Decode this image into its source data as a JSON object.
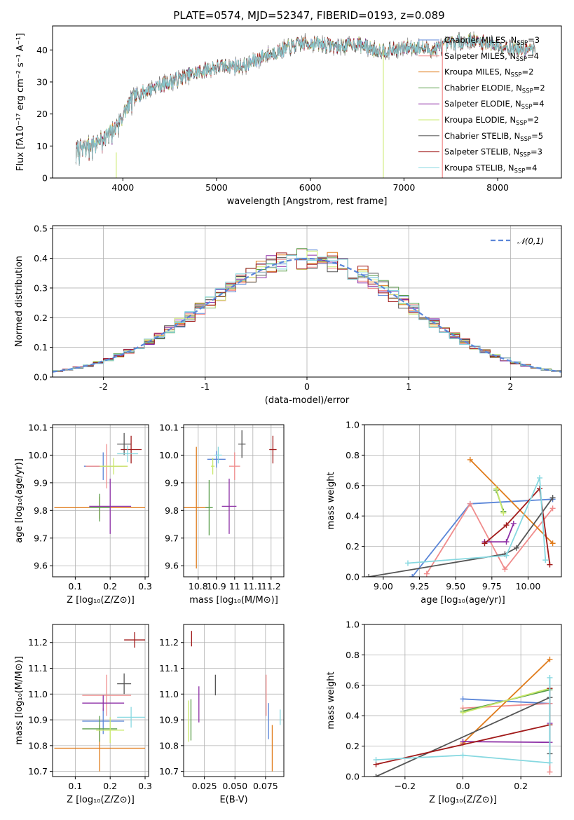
{
  "figure": {
    "title": "PLATE=0574, MJD=52347, FIBERID=0193, z=0.089"
  },
  "chart_data": [
    {
      "id": "spectrum",
      "type": "line",
      "xlabel": "wavelength [Angstrom, rest frame]",
      "ylabel": "Flux [fλ10⁻¹⁷ erg cm⁻² s⁻¹ A⁻¹]",
      "xlim": [
        3250,
        8680
      ],
      "ylim": [
        0,
        47.5
      ],
      "xticks": [
        4000,
        5000,
        6000,
        7000,
        8000
      ],
      "yticks": [
        0,
        10,
        20,
        30,
        40
      ],
      "grid": false,
      "legend_position": "top-right",
      "continuum_knots": {
        "x": [
          3500,
          3700,
          3900,
          4000,
          4100,
          4300,
          4500,
          4700,
          4900,
          5100,
          5300,
          5500,
          5700,
          5900,
          6100,
          6300,
          6500,
          6700,
          6900,
          7100,
          7300,
          7500,
          7700,
          7900,
          8100,
          8300
        ],
        "y": [
          9,
          11,
          15,
          20,
          25,
          28,
          30,
          32,
          34,
          35,
          35,
          38,
          40,
          42,
          42,
          41,
          42,
          40,
          40,
          41,
          40,
          42,
          43,
          42,
          41,
          40
        ]
      },
      "series": [
        {
          "name": "Chabrier MILES, N_SSP=3",
          "color": "#5b86d8"
        },
        {
          "name": "Salpeter MILES, N_SSP=4",
          "color": "#f08c8c"
        },
        {
          "name": "Kroupa MILES, N_SSP=2",
          "color": "#e07b1a"
        },
        {
          "name": "Chabrier ELODIE, N_SSP=2",
          "color": "#5a9e4a"
        },
        {
          "name": "Salpeter ELODIE, N_SSP=4",
          "color": "#8d2fa6"
        },
        {
          "name": "Kroupa ELODIE, N_SSP=2",
          "color": "#c9e86a"
        },
        {
          "name": "Chabrier STELIB, N_SSP=5",
          "color": "#555555"
        },
        {
          "name": "Salpeter STELIB, N_SSP=3",
          "color": "#a11a1a"
        },
        {
          "name": "Kroupa STELIB, N_SSP=4",
          "color": "#86d8e0"
        }
      ],
      "data_color": "#7a7a7a"
    },
    {
      "id": "residuals",
      "type": "histogram",
      "xlabel": "(data-model)/error",
      "ylabel": "Normed distribution",
      "xlim": [
        -2.5,
        2.5
      ],
      "ylim": [
        0,
        0.51
      ],
      "xticks": [
        -2,
        -1,
        0,
        1,
        2
      ],
      "yticks": [
        0.0,
        0.1,
        0.2,
        0.3,
        0.4,
        0.5
      ],
      "grid": true,
      "bin_width": 0.1,
      "legend_position": "top-right",
      "reference": {
        "name": "𝒩(0,1)",
        "mean": 0,
        "sigma": 1,
        "color": "#5b86d8"
      },
      "series_colors": [
        "#5b86d8",
        "#f08c8c",
        "#e07b1a",
        "#5a9e4a",
        "#8d2fa6",
        "#c9e86a",
        "#555555",
        "#a11a1a",
        "#86d8e0"
      ]
    },
    {
      "id": "age_vs_Z",
      "type": "scatter",
      "xlabel": "Z [log₁₀(Z/Z⊙)]",
      "ylabel": "age  [log₁₀(age/yr)]",
      "xlim": [
        0.035,
        0.31
      ],
      "ylim": [
        9.56,
        10.11
      ],
      "xticks": [
        0.1,
        0.2,
        0.3
      ],
      "yticks": [
        9.6,
        9.7,
        9.8,
        9.9,
        10.0,
        10.1
      ],
      "grid": true,
      "points": [
        {
          "x": 0.18,
          "y": 9.96,
          "xerr": 0.055,
          "yerr": 0.05,
          "color": "#5b86d8"
        },
        {
          "x": 0.19,
          "y": 9.96,
          "xerr": 0.06,
          "yerr": 0.08,
          "color": "#f08c8c"
        },
        {
          "x": 0.17,
          "y": 9.81,
          "xerr": 0.13,
          "yerr": 0.04,
          "color": "#e07b1a"
        },
        {
          "x": 0.17,
          "y": 9.81,
          "xerr": 0.03,
          "yerr": 0.05,
          "color": "#5a9e4a"
        },
        {
          "x": 0.2,
          "y": 9.815,
          "xerr": 0.06,
          "yerr": 0.1,
          "color": "#8d2fa6"
        },
        {
          "x": 0.21,
          "y": 9.96,
          "xerr": 0.04,
          "yerr": 0.03,
          "color": "#c9e86a"
        },
        {
          "x": 0.24,
          "y": 10.04,
          "xerr": 0.02,
          "yerr": 0.04,
          "color": "#555555"
        },
        {
          "x": 0.26,
          "y": 10.02,
          "xerr": 0.03,
          "yerr": 0.05,
          "color": "#a11a1a"
        },
        {
          "x": 0.25,
          "y": 10.005,
          "xerr": 0.03,
          "yerr": 0.03,
          "color": "#86d8e0"
        }
      ]
    },
    {
      "id": "age_vs_mass",
      "type": "scatter",
      "xlabel": "mass [log₁₀(M/M⊙)]",
      "ylabel": "",
      "xlim": [
        10.72,
        11.27
      ],
      "ylim": [
        9.56,
        10.11
      ],
      "xticks": [
        10.8,
        10.9,
        11.0,
        11.1,
        11.2
      ],
      "yticks": [
        9.6,
        9.7,
        9.8,
        9.9,
        10.0,
        10.1
      ],
      "grid": true,
      "points": [
        {
          "x": 10.9,
          "y": 9.985,
          "xerr": 0.05,
          "yerr": 0.03,
          "color": "#5b86d8"
        },
        {
          "x": 11.0,
          "y": 9.96,
          "xerr": 0.03,
          "yerr": 0.05,
          "color": "#f08c8c"
        },
        {
          "x": 10.79,
          "y": 9.81,
          "xerr": 0.07,
          "yerr": 0.22,
          "color": "#e07b1a"
        },
        {
          "x": 10.86,
          "y": 9.81,
          "xerr": 0.02,
          "yerr": 0.1,
          "color": "#5a9e4a"
        },
        {
          "x": 10.97,
          "y": 9.815,
          "xerr": 0.04,
          "yerr": 0.1,
          "color": "#8d2fa6"
        },
        {
          "x": 10.88,
          "y": 9.96,
          "xerr": 0.01,
          "yerr": 0.03,
          "color": "#c9e86a"
        },
        {
          "x": 11.04,
          "y": 10.04,
          "xerr": 0.02,
          "yerr": 0.05,
          "color": "#555555"
        },
        {
          "x": 11.21,
          "y": 10.02,
          "xerr": 0.02,
          "yerr": 0.05,
          "color": "#a11a1a"
        },
        {
          "x": 10.91,
          "y": 10.0,
          "xerr": 0.02,
          "yerr": 0.03,
          "color": "#86d8e0"
        }
      ]
    },
    {
      "id": "weight_vs_age",
      "type": "line",
      "xlabel": "age  [log₁₀(age/yr)]",
      "ylabel": "mass weight",
      "xlim": [
        8.87,
        10.23
      ],
      "ylim": [
        0,
        1.0
      ],
      "xticks": [
        9.0,
        9.25,
        9.5,
        9.75,
        10.0
      ],
      "xtick_labels": [
        "9.00",
        "9.25",
        "9.50",
        "9.75",
        "10.00"
      ],
      "yticks": [
        0.0,
        0.2,
        0.4,
        0.6,
        0.8,
        1.0
      ],
      "grid": true,
      "series": [
        {
          "color": "#5b86d8",
          "x": [
            9.2,
            9.6,
            10.17
          ],
          "y": [
            0.0,
            0.48,
            0.51
          ]
        },
        {
          "color": "#f08c8c",
          "x": [
            9.3,
            9.6,
            9.84,
            10.17
          ],
          "y": [
            0.02,
            0.48,
            0.05,
            0.45
          ]
        },
        {
          "color": "#e07b1a",
          "x": [
            9.6,
            10.17
          ],
          "y": [
            0.77,
            0.22
          ]
        },
        {
          "color": "#5a9e4a",
          "x": [
            9.78,
            9.83
          ],
          "y": [
            0.57,
            0.43
          ]
        },
        {
          "color": "#8d2fa6",
          "x": [
            9.7,
            9.85,
            9.9
          ],
          "y": [
            0.23,
            0.23,
            0.35
          ]
        },
        {
          "color": "#c9e86a",
          "x": [
            9.78,
            9.83
          ],
          "y": [
            0.58,
            0.42
          ]
        },
        {
          "color": "#555555",
          "x": [
            8.9,
            9.84,
            9.92,
            10.17
          ],
          "y": [
            0.0,
            0.15,
            0.19,
            0.52
          ]
        },
        {
          "color": "#a11a1a",
          "x": [
            9.7,
            9.85,
            10.08,
            10.15
          ],
          "y": [
            0.22,
            0.34,
            0.58,
            0.08
          ]
        },
        {
          "color": "#86d8e0",
          "x": [
            9.17,
            9.85,
            10.08,
            10.12
          ],
          "y": [
            0.09,
            0.14,
            0.65,
            0.11
          ]
        }
      ]
    },
    {
      "id": "mass_vs_Z",
      "type": "scatter",
      "xlabel": "Z [log₁₀(Z/Z⊙)]",
      "ylabel": "mass [log₁₀(M/M⊙)]",
      "xlim": [
        0.035,
        0.31
      ],
      "ylim": [
        10.68,
        11.27
      ],
      "xticks": [
        0.1,
        0.2,
        0.3
      ],
      "yticks": [
        10.7,
        10.8,
        10.9,
        11.0,
        11.1,
        11.2
      ],
      "grid": true,
      "points": [
        {
          "x": 0.18,
          "y": 10.895,
          "xerr": 0.06,
          "yerr": 0.05,
          "color": "#5b86d8"
        },
        {
          "x": 0.19,
          "y": 10.995,
          "xerr": 0.07,
          "yerr": 0.08,
          "color": "#f08c8c"
        },
        {
          "x": 0.17,
          "y": 10.79,
          "xerr": 0.13,
          "yerr": 0.09,
          "color": "#e07b1a"
        },
        {
          "x": 0.17,
          "y": 10.865,
          "xerr": 0.05,
          "yerr": 0.05,
          "color": "#5a9e4a"
        },
        {
          "x": 0.18,
          "y": 10.965,
          "xerr": 0.06,
          "yerr": 0.03,
          "color": "#8d2fa6"
        },
        {
          "x": 0.2,
          "y": 10.86,
          "xerr": 0.04,
          "yerr": 0.05,
          "color": "#c9e86a"
        },
        {
          "x": 0.24,
          "y": 11.04,
          "xerr": 0.02,
          "yerr": 0.04,
          "color": "#555555"
        },
        {
          "x": 0.27,
          "y": 11.21,
          "xerr": 0.03,
          "yerr": 0.03,
          "color": "#a11a1a"
        },
        {
          "x": 0.26,
          "y": 10.91,
          "xerr": 0.04,
          "yerr": 0.04,
          "color": "#86d8e0"
        }
      ]
    },
    {
      "id": "mass_vs_ebv",
      "type": "scatter",
      "xlabel": "E(B-V)",
      "ylabel": "",
      "xlim": [
        0.008,
        0.09
      ],
      "ylim": [
        10.68,
        11.27
      ],
      "xticks": [
        0.025,
        0.05,
        0.075
      ],
      "xtick_labels": [
        "0.025",
        "0.050",
        "0.075"
      ],
      "yticks": [
        10.7,
        10.8,
        10.9,
        11.0,
        11.1,
        11.2
      ],
      "grid": true,
      "points": [
        {
          "x": 0.0775,
          "y": 10.895,
          "yerr": 0.07,
          "color": "#5b86d8"
        },
        {
          "x": 0.0755,
          "y": 10.995,
          "yerr": 0.08,
          "color": "#f08c8c"
        },
        {
          "x": 0.0805,
          "y": 10.79,
          "yerr": 0.09,
          "color": "#e07b1a"
        },
        {
          "x": 0.014,
          "y": 10.9,
          "yerr": 0.08,
          "color": "#5a9e4a"
        },
        {
          "x": 0.0205,
          "y": 10.96,
          "yerr": 0.07,
          "color": "#8d2fa6"
        },
        {
          "x": 0.012,
          "y": 10.895,
          "yerr": 0.08,
          "color": "#c9e86a"
        },
        {
          "x": 0.034,
          "y": 11.035,
          "yerr": 0.04,
          "color": "#555555"
        },
        {
          "x": 0.0145,
          "y": 11.215,
          "yerr": 0.03,
          "color": "#a11a1a"
        },
        {
          "x": 0.087,
          "y": 10.91,
          "yerr": 0.03,
          "color": "#86d8e0"
        }
      ]
    },
    {
      "id": "weight_vs_Z",
      "type": "line",
      "xlabel": "Z [log₁₀(Z/Z⊙)]",
      "ylabel": "mass weight",
      "xlim": [
        -0.34,
        0.34
      ],
      "ylim": [
        0,
        1.0
      ],
      "xticks": [
        -0.2,
        0.0,
        0.2
      ],
      "xtick_labels": [
        "−0.2",
        "0.0",
        "0.2"
      ],
      "yticks": [
        0.0,
        0.2,
        0.4,
        0.6,
        0.8,
        1.0
      ],
      "grid": true,
      "series": [
        {
          "color": "#5b86d8",
          "x": [
            0.0,
            0.3
          ],
          "y": [
            0.51,
            0.48
          ]
        },
        {
          "color": "#f08c8c",
          "x": [
            0.0,
            0.3,
            0.3
          ],
          "y": [
            0.45,
            0.48,
            0.03
          ]
        },
        {
          "color": "#e07b1a",
          "x": [
            0.0,
            0.3
          ],
          "y": [
            0.22,
            0.77
          ]
        },
        {
          "color": "#5a9e4a",
          "x": [
            0.0,
            0.3
          ],
          "y": [
            0.43,
            0.57
          ]
        },
        {
          "color": "#8d2fa6",
          "x": [
            0.0,
            0.3,
            0.3
          ],
          "y": [
            0.23,
            0.225,
            0.35
          ]
        },
        {
          "color": "#c9e86a",
          "x": [
            0.0,
            0.3
          ],
          "y": [
            0.42,
            0.58
          ]
        },
        {
          "color": "#555555",
          "x": [
            -0.3,
            0.3,
            0.3
          ],
          "y": [
            0.0,
            0.52,
            0.15
          ]
        },
        {
          "color": "#a11a1a",
          "x": [
            -0.3,
            0.3,
            0.3
          ],
          "y": [
            0.08,
            0.34,
            0.58
          ]
        },
        {
          "color": "#86d8e0",
          "x": [
            -0.3,
            0.0,
            0.3,
            0.3
          ],
          "y": [
            0.11,
            0.14,
            0.09,
            0.65
          ]
        }
      ]
    }
  ]
}
